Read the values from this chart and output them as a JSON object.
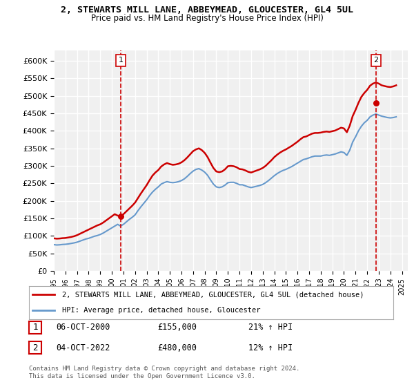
{
  "title": "2, STEWARTS MILL LANE, ABBEYMEAD, GLOUCESTER, GL4 5UL",
  "subtitle": "Price paid vs. HM Land Registry's House Price Index (HPI)",
  "legend_label_red": "2, STEWARTS MILL LANE, ABBEYMEAD, GLOUCESTER, GL4 5UL (detached house)",
  "legend_label_blue": "HPI: Average price, detached house, Gloucester",
  "footer": "Contains HM Land Registry data © Crown copyright and database right 2024.\nThis data is licensed under the Open Government Licence v3.0.",
  "sale1_label": "06-OCT-2000",
  "sale1_price": "£155,000",
  "sale1_hpi": "21% ↑ HPI",
  "sale2_label": "04-OCT-2022",
  "sale2_price": "£480,000",
  "sale2_hpi": "12% ↑ HPI",
  "ylim": [
    0,
    630000
  ],
  "yticks": [
    0,
    50000,
    100000,
    150000,
    200000,
    250000,
    300000,
    350000,
    400000,
    450000,
    500000,
    550000,
    600000
  ],
  "xlim_start": 1995.0,
  "xlim_end": 2025.5,
  "sale1_x": 2000.76,
  "sale1_y": 155000,
  "sale2_x": 2022.76,
  "sale2_y": 480000,
  "hpi_x": [
    1995.0,
    1995.25,
    1995.5,
    1995.75,
    1996.0,
    1996.25,
    1996.5,
    1996.75,
    1997.0,
    1997.25,
    1997.5,
    1997.75,
    1998.0,
    1998.25,
    1998.5,
    1998.75,
    1999.0,
    1999.25,
    1999.5,
    1999.75,
    2000.0,
    2000.25,
    2000.5,
    2000.75,
    2001.0,
    2001.25,
    2001.5,
    2001.75,
    2002.0,
    2002.25,
    2002.5,
    2002.75,
    2003.0,
    2003.25,
    2003.5,
    2003.75,
    2004.0,
    2004.25,
    2004.5,
    2004.75,
    2005.0,
    2005.25,
    2005.5,
    2005.75,
    2006.0,
    2006.25,
    2006.5,
    2006.75,
    2007.0,
    2007.25,
    2007.5,
    2007.75,
    2008.0,
    2008.25,
    2008.5,
    2008.75,
    2009.0,
    2009.25,
    2009.5,
    2009.75,
    2010.0,
    2010.25,
    2010.5,
    2010.75,
    2011.0,
    2011.25,
    2011.5,
    2011.75,
    2012.0,
    2012.25,
    2012.5,
    2012.75,
    2013.0,
    2013.25,
    2013.5,
    2013.75,
    2014.0,
    2014.25,
    2014.5,
    2014.75,
    2015.0,
    2015.25,
    2015.5,
    2015.75,
    2016.0,
    2016.25,
    2016.5,
    2016.75,
    2017.0,
    2017.25,
    2017.5,
    2017.75,
    2018.0,
    2018.25,
    2018.5,
    2018.75,
    2019.0,
    2019.25,
    2019.5,
    2019.75,
    2020.0,
    2020.25,
    2020.5,
    2020.75,
    2021.0,
    2021.25,
    2021.5,
    2021.75,
    2022.0,
    2022.25,
    2022.5,
    2022.75,
    2023.0,
    2023.25,
    2023.5,
    2023.75,
    2024.0,
    2024.25,
    2024.5
  ],
  "hpi_y": [
    75000,
    74000,
    74500,
    75500,
    76000,
    77000,
    78500,
    80000,
    82000,
    85000,
    88000,
    91000,
    93000,
    96000,
    99000,
    101000,
    104000,
    108000,
    113000,
    118000,
    123000,
    128000,
    133000,
    128000,
    133000,
    140000,
    147000,
    153000,
    160000,
    172000,
    183000,
    193000,
    203000,
    215000,
    225000,
    233000,
    240000,
    248000,
    252000,
    255000,
    253000,
    252000,
    253000,
    255000,
    258000,
    263000,
    270000,
    278000,
    285000,
    290000,
    292000,
    288000,
    282000,
    273000,
    260000,
    248000,
    240000,
    238000,
    240000,
    245000,
    252000,
    253000,
    253000,
    250000,
    246000,
    246000,
    243000,
    240000,
    238000,
    240000,
    242000,
    244000,
    247000,
    252000,
    258000,
    265000,
    272000,
    278000,
    283000,
    287000,
    290000,
    294000,
    298000,
    303000,
    308000,
    313000,
    318000,
    320000,
    323000,
    326000,
    328000,
    328000,
    328000,
    330000,
    331000,
    330000,
    332000,
    334000,
    337000,
    340000,
    338000,
    330000,
    345000,
    368000,
    383000,
    400000,
    413000,
    423000,
    430000,
    440000,
    445000,
    448000,
    445000,
    442000,
    440000,
    438000,
    437000,
    438000,
    440000
  ],
  "red_x": [
    1995.0,
    1995.25,
    1995.5,
    1995.75,
    1996.0,
    1996.25,
    1996.5,
    1996.75,
    1997.0,
    1997.25,
    1997.5,
    1997.75,
    1998.0,
    1998.25,
    1998.5,
    1998.75,
    1999.0,
    1999.25,
    1999.5,
    1999.75,
    2000.0,
    2000.25,
    2000.5,
    2000.75,
    2001.0,
    2001.25,
    2001.5,
    2001.75,
    2002.0,
    2002.25,
    2002.5,
    2002.75,
    2003.0,
    2003.25,
    2003.5,
    2003.75,
    2004.0,
    2004.25,
    2004.5,
    2004.75,
    2005.0,
    2005.25,
    2005.5,
    2005.75,
    2006.0,
    2006.25,
    2006.5,
    2006.75,
    2007.0,
    2007.25,
    2007.5,
    2007.75,
    2008.0,
    2008.25,
    2008.5,
    2008.75,
    2009.0,
    2009.25,
    2009.5,
    2009.75,
    2010.0,
    2010.25,
    2010.5,
    2010.75,
    2011.0,
    2011.25,
    2011.5,
    2011.75,
    2012.0,
    2012.25,
    2012.5,
    2012.75,
    2013.0,
    2013.25,
    2013.5,
    2013.75,
    2014.0,
    2014.25,
    2014.5,
    2014.75,
    2015.0,
    2015.25,
    2015.5,
    2015.75,
    2016.0,
    2016.25,
    2016.5,
    2016.75,
    2017.0,
    2017.25,
    2017.5,
    2017.75,
    2018.0,
    2018.25,
    2018.5,
    2018.75,
    2019.0,
    2019.25,
    2019.5,
    2019.75,
    2020.0,
    2020.25,
    2020.5,
    2020.75,
    2021.0,
    2021.25,
    2021.5,
    2021.75,
    2022.0,
    2022.25,
    2022.5,
    2022.75,
    2023.0,
    2023.25,
    2023.5,
    2023.75,
    2024.0,
    2024.25,
    2024.5
  ],
  "red_y": [
    93000,
    92000,
    92500,
    93500,
    94000,
    95500,
    97000,
    99000,
    102000,
    106000,
    110000,
    114000,
    118000,
    122000,
    126000,
    130000,
    133000,
    138000,
    144000,
    150000,
    156000,
    162000,
    158000,
    155000,
    162000,
    170000,
    178000,
    186000,
    195000,
    208000,
    221000,
    233000,
    245000,
    259000,
    272000,
    281000,
    288000,
    298000,
    304000,
    308000,
    305000,
    303000,
    304000,
    306000,
    310000,
    316000,
    324000,
    333000,
    342000,
    347000,
    350000,
    345000,
    337000,
    325000,
    309000,
    294000,
    284000,
    282000,
    284000,
    290000,
    299000,
    300000,
    299000,
    296000,
    291000,
    290000,
    287000,
    283000,
    281000,
    284000,
    287000,
    290000,
    294000,
    300000,
    308000,
    316000,
    325000,
    332000,
    338000,
    343000,
    347000,
    352000,
    357000,
    363000,
    369000,
    376000,
    382000,
    384000,
    388000,
    392000,
    394000,
    394000,
    395000,
    397000,
    398000,
    397000,
    399000,
    401000,
    405000,
    409000,
    407000,
    396000,
    415000,
    442000,
    460000,
    480000,
    497000,
    508000,
    517000,
    529000,
    535000,
    538000,
    535000,
    530000,
    528000,
    526000,
    525000,
    527000,
    530000
  ],
  "bg_color": "#ffffff",
  "plot_bg_color": "#f0f0f0",
  "grid_color": "#ffffff",
  "red_color": "#cc0000",
  "blue_color": "#6699cc",
  "vline_color": "#cc0000"
}
